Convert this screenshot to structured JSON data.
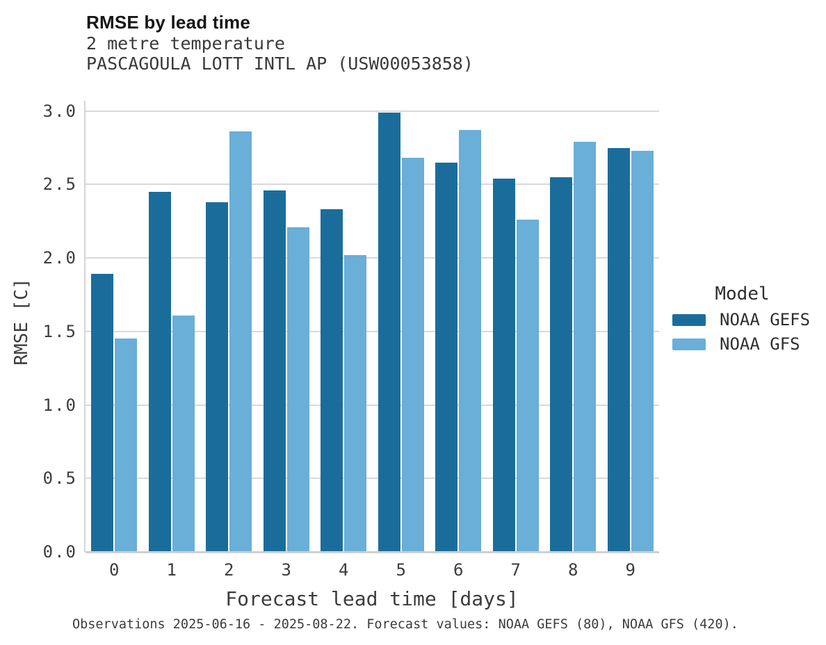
{
  "header": {
    "title": "RMSE by lead time",
    "subtitle1": "2 metre temperature",
    "subtitle2": "PASCAGOULA LOTT INTL AP (USW00053858)"
  },
  "caption": "Observations 2025-06-16 - 2025-08-22. Forecast values: NOAA GEFS (80), NOAA GFS (420).",
  "legend": {
    "title": "Model"
  },
  "chart_data": {
    "type": "bar",
    "title": "RMSE by lead time",
    "subtitle": [
      "2 metre temperature",
      "PASCAGOULA LOTT INTL AP (USW00053858)"
    ],
    "xlabel": "Forecast lead time [days]",
    "ylabel": "RMSE [C]",
    "categories": [
      "0",
      "1",
      "2",
      "3",
      "4",
      "5",
      "6",
      "7",
      "8",
      "9"
    ],
    "series": [
      {
        "name": "NOAA GEFS",
        "color": "#1a6d9b",
        "values": [
          1.89,
          2.45,
          2.38,
          2.46,
          2.33,
          2.99,
          2.65,
          2.54,
          2.55,
          2.75
        ]
      },
      {
        "name": "NOAA GFS",
        "color": "#69afd8",
        "values": [
          1.45,
          1.61,
          2.86,
          2.21,
          2.02,
          2.68,
          2.87,
          2.26,
          2.79,
          2.73
        ]
      }
    ],
    "yticks": [
      0.0,
      0.5,
      1.0,
      1.5,
      2.0,
      2.5,
      3.0
    ],
    "ylim": [
      0,
      3.07
    ],
    "grid": true,
    "legend_title": "Model",
    "legend_position": "right",
    "colors": {
      "grid": "#d9d9d9",
      "axis": "#cfcfcf",
      "text": "#3c3c3c"
    }
  }
}
